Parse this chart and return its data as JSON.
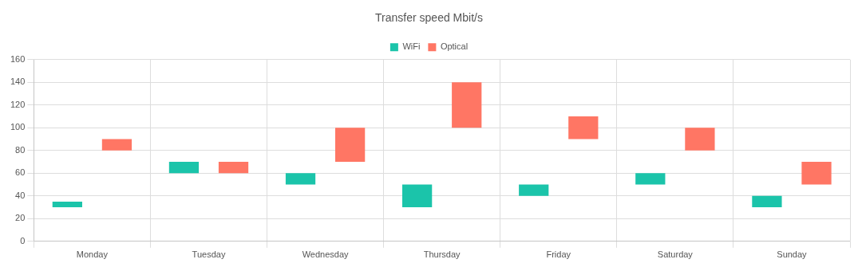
{
  "chart_data": {
    "type": "bar",
    "title": "Transfer speed Mbit/s",
    "categories": [
      "Monday",
      "Tuesday",
      "Wednesday",
      "Thursday",
      "Friday",
      "Saturday",
      "Sunday"
    ],
    "series": [
      {
        "name": "WiFi",
        "color": "#1bc4aa",
        "base": [
          30,
          60,
          50,
          30,
          40,
          50,
          30
        ],
        "values": [
          5,
          10,
          10,
          20,
          10,
          10,
          10
        ]
      },
      {
        "name": "Optical",
        "color": "#ff7664",
        "base": [
          80,
          60,
          70,
          100,
          90,
          80,
          50
        ],
        "values": [
          10,
          10,
          30,
          40,
          20,
          20,
          20
        ]
      }
    ],
    "ylim": [
      0,
      160
    ],
    "yticks": [
      0,
      20,
      40,
      60,
      80,
      100,
      120,
      140,
      160
    ],
    "grid": true,
    "legend": "top"
  }
}
